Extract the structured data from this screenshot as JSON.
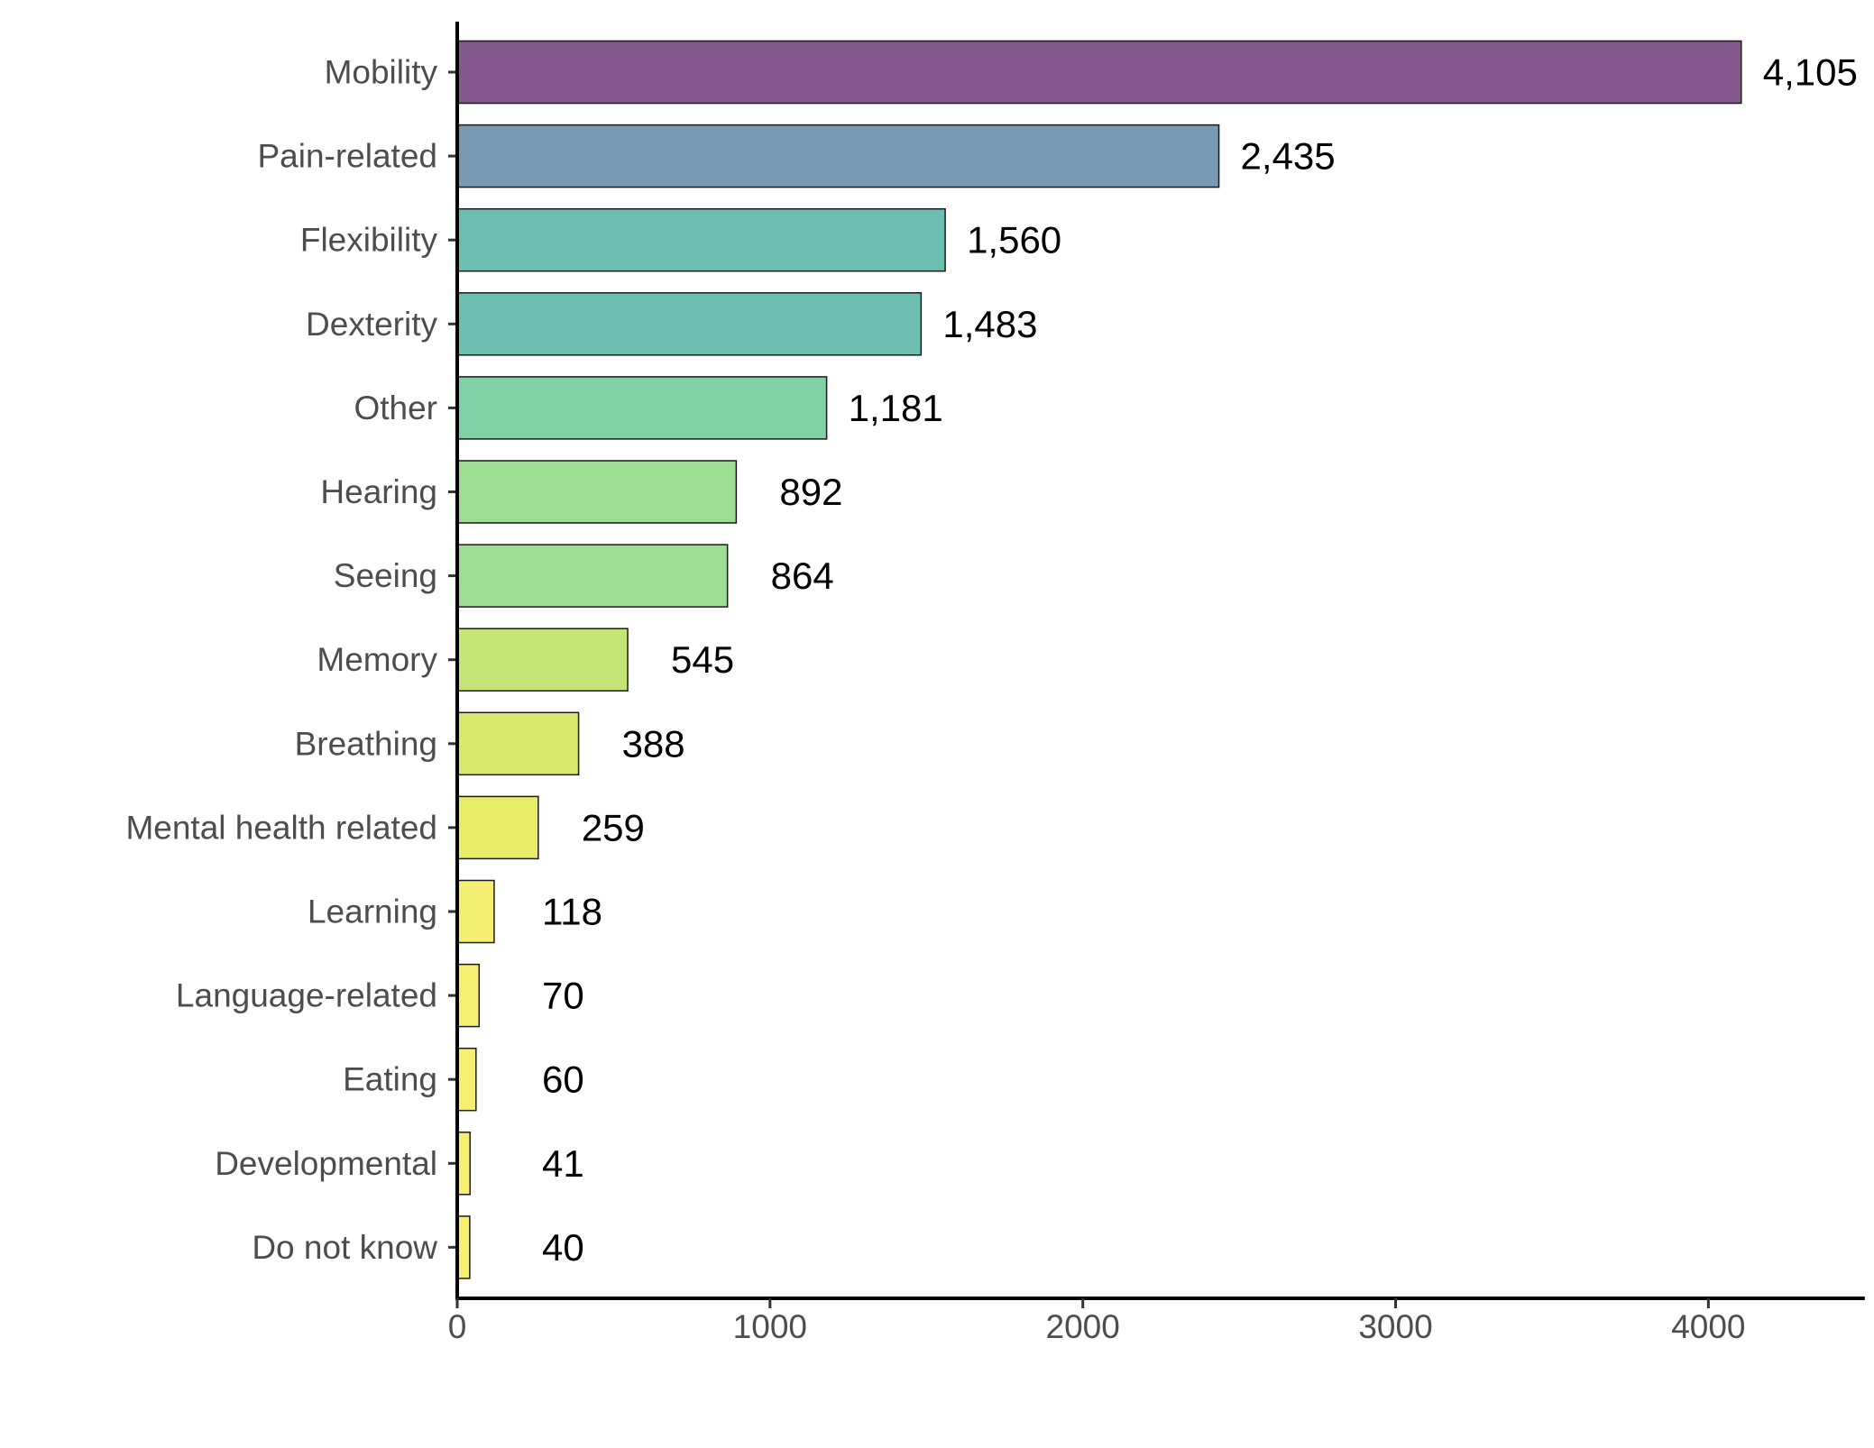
{
  "chart_data": {
    "type": "bar",
    "orientation": "horizontal",
    "title": "",
    "xlabel": "",
    "ylabel": "",
    "xlim": [
      0,
      4500
    ],
    "x_ticks": [
      0,
      1000,
      2000,
      3000,
      4000
    ],
    "x_tick_labels": [
      "0",
      "1000",
      "2000",
      "3000",
      "4000"
    ],
    "grid": false,
    "legend": "none",
    "categories": [
      "Mobility",
      "Pain-related",
      "Flexibility",
      "Dexterity",
      "Other",
      "Hearing",
      "Seeing",
      "Memory",
      "Breathing",
      "Mental health related",
      "Learning",
      "Language-related",
      "Eating",
      "Developmental",
      "Do not know"
    ],
    "values": [
      4105,
      2435,
      1560,
      1483,
      1181,
      892,
      864,
      545,
      388,
      259,
      118,
      70,
      60,
      41,
      40
    ],
    "value_labels": [
      "4,105",
      "2,435",
      "1,560",
      "1,483",
      "1,181",
      "892",
      "864",
      "545",
      "388",
      "259",
      "118",
      "70",
      "60",
      "41",
      "40"
    ],
    "colors": [
      "#84598e",
      "#7a99b3",
      "#6cbfb0",
      "#6cbfb0",
      "#7fd2a3",
      "#9cdd93",
      "#9cdd93",
      "#c4e679",
      "#d8e96c",
      "#e8ec68",
      "#f4ef72",
      "#f7ef72",
      "#f7ef72",
      "#f8ef72",
      "#f8ef72"
    ]
  }
}
